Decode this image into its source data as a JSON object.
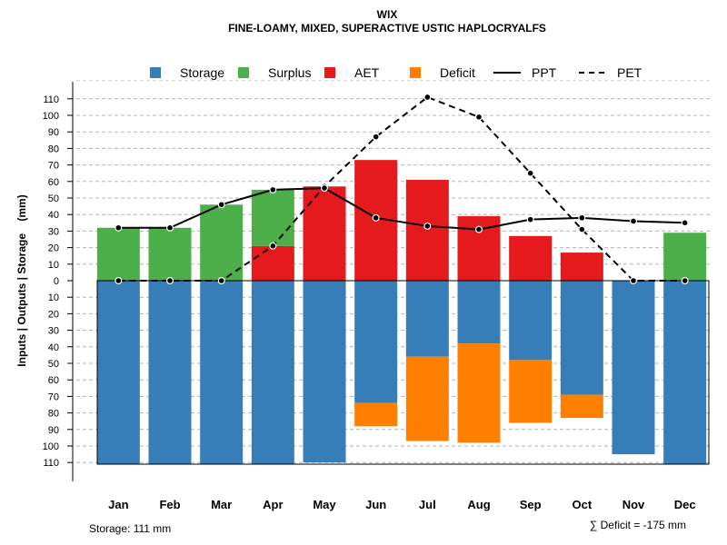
{
  "chart_data": {
    "type": "bar",
    "title": "WIX",
    "subtitle": "FINE-LOAMY, MIXED, SUPERACTIVE USTIC HAPLOCRYALFS",
    "ylabel": "Inputs | Outputs | Storage    (mm)",
    "ylim": [
      -121,
      121
    ],
    "yticks": [
      110,
      100,
      90,
      80,
      70,
      60,
      50,
      40,
      30,
      20,
      10,
      0,
      -10,
      -20,
      -30,
      -40,
      -50,
      -60,
      -70,
      -80,
      -90,
      -100,
      -110
    ],
    "ytick_labels": [
      "110",
      "100",
      "90",
      "80",
      "70",
      "60",
      "50",
      "40",
      "30",
      "20",
      "10",
      "0",
      "10",
      "20",
      "30",
      "40",
      "50",
      "60",
      "70",
      "80",
      "90",
      "100",
      "110"
    ],
    "grid": true,
    "categories": [
      "Jan",
      "Feb",
      "Mar",
      "Apr",
      "May",
      "Jun",
      "Jul",
      "Aug",
      "Sep",
      "Oct",
      "Nov",
      "Dec"
    ],
    "legend": [
      {
        "label": "Storage",
        "kind": "box",
        "color": "#377EB8"
      },
      {
        "label": "Surplus",
        "kind": "box",
        "color": "#4DAF4A"
      },
      {
        "label": "AET",
        "kind": "box",
        "color": "#E41A1C"
      },
      {
        "label": "Deficit",
        "kind": "box",
        "color": "#FF7F00"
      },
      {
        "label": "PPT",
        "kind": "solid",
        "color": "#000000"
      },
      {
        "label": "PET",
        "kind": "dashed",
        "color": "#000000"
      }
    ],
    "series": [
      {
        "name": "Storage",
        "color": "#377EB8",
        "values": [
          111,
          111,
          111,
          111,
          110,
          74,
          46,
          38,
          48,
          69,
          105,
          111
        ]
      },
      {
        "name": "Surplus",
        "color": "#4DAF4A",
        "values": [
          32,
          32,
          46,
          34,
          0,
          0,
          0,
          0,
          0,
          0,
          0,
          29
        ]
      },
      {
        "name": "AET",
        "color": "#E41A1C",
        "values": [
          0,
          0,
          0,
          21,
          57,
          73,
          61,
          39,
          27,
          17,
          0,
          0
        ]
      },
      {
        "name": "Deficit",
        "color": "#FF7F00",
        "values": [
          0,
          0,
          0,
          0,
          0,
          14,
          51,
          60,
          38,
          14,
          0,
          0
        ]
      },
      {
        "name": "PPT",
        "color": "#000000",
        "values": [
          32,
          32,
          46,
          55,
          56,
          38,
          33,
          31,
          37,
          38,
          36,
          35
        ]
      },
      {
        "name": "PET",
        "color": "#000000",
        "values": [
          0,
          0,
          0,
          21,
          57,
          87,
          111,
          99,
          65,
          31,
          0,
          0
        ]
      }
    ],
    "footer_left": "Storage: 111 mm",
    "footer_right": "∑ Deficit = -175 mm"
  }
}
